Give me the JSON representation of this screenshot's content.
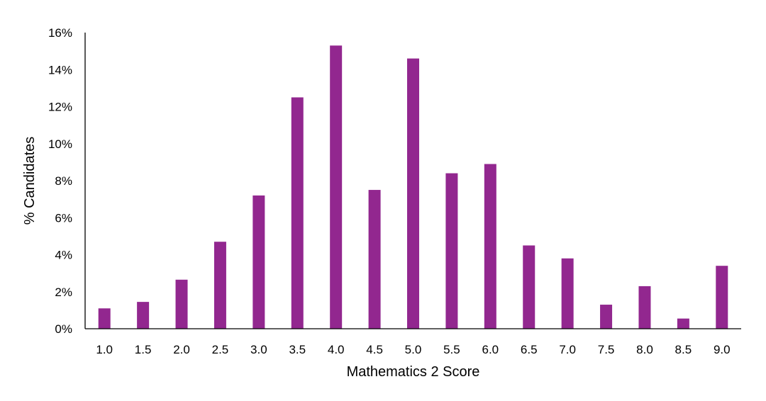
{
  "chart_data": {
    "type": "bar",
    "title": "",
    "xlabel": "Mathematics 2 Score",
    "ylabel": "% Candidates",
    "categories": [
      "1.0",
      "1.5",
      "2.0",
      "2.5",
      "3.0",
      "3.5",
      "4.0",
      "4.5",
      "5.0",
      "5.5",
      "6.0",
      "6.5",
      "7.0",
      "7.5",
      "8.0",
      "8.5",
      "9.0"
    ],
    "values": [
      1.1,
      1.45,
      2.65,
      4.7,
      7.2,
      12.5,
      15.3,
      7.5,
      14.6,
      8.4,
      8.9,
      4.5,
      3.8,
      1.3,
      2.3,
      0.55,
      3.4
    ],
    "ylim": [
      0,
      16
    ],
    "yticks": [
      0,
      2,
      4,
      6,
      8,
      10,
      12,
      14,
      16
    ],
    "ytick_labels": [
      "0%",
      "2%",
      "4%",
      "6%",
      "8%",
      "10%",
      "12%",
      "14%",
      "16%"
    ],
    "grid": false,
    "legend": "none",
    "bar_color": "#92278F",
    "axis_color": "#000000"
  }
}
